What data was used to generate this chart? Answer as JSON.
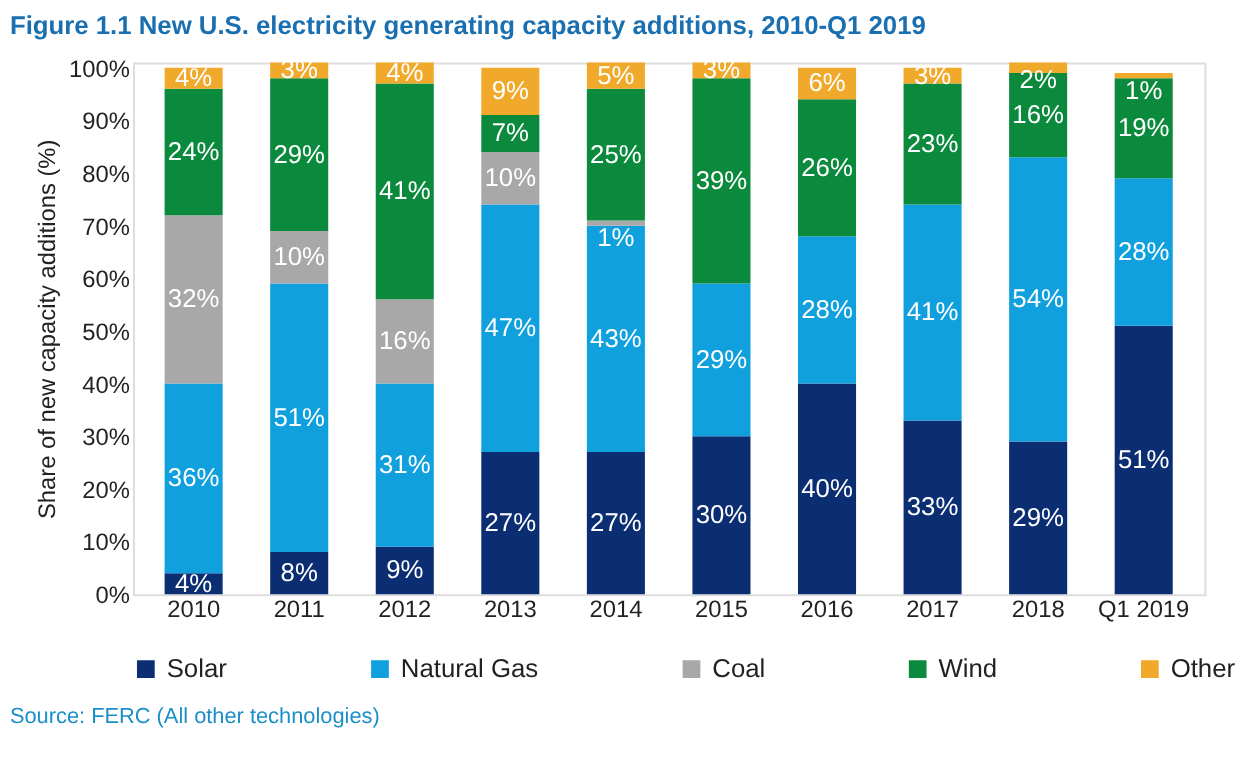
{
  "chart_data": {
    "type": "bar",
    "stacked": true,
    "title": "Figure 1.1 New U.S. electricity generating capacity additions, 2010-Q1 2019",
    "ylabel": "Share of new capacity additions (%)",
    "categories": [
      "2010",
      "2011",
      "2012",
      "2013",
      "2014",
      "2015",
      "2016",
      "2017",
      "2018",
      "Q1 2019"
    ],
    "series": [
      {
        "name": "Solar",
        "color": "#0b2d72",
        "values": [
          4,
          8,
          9,
          27,
          27,
          30,
          40,
          33,
          29,
          51
        ],
        "value_labels": [
          "4%",
          "8%",
          "9%",
          "27%",
          "27%",
          "30%",
          "40%",
          "33%",
          "29%",
          "51%"
        ]
      },
      {
        "name": "Natural Gas",
        "color": "#10a0dd",
        "values": [
          36,
          51,
          31,
          47,
          43,
          29,
          28,
          41,
          54,
          28
        ],
        "value_labels": [
          "36%",
          "51%",
          "31%",
          "47%",
          "43%",
          "29%",
          "28%",
          "41%",
          "54%",
          "28%"
        ]
      },
      {
        "name": "Coal",
        "color": "#a8a8a8",
        "values": [
          32,
          10,
          16,
          10,
          1,
          null,
          null,
          null,
          null,
          null
        ],
        "value_labels": [
          "32%",
          "10%",
          "16%",
          "10%",
          "1%",
          null,
          null,
          null,
          null,
          null
        ]
      },
      {
        "name": "Wind",
        "color": "#0b8a3e",
        "values": [
          24,
          29,
          41,
          7,
          25,
          39,
          26,
          23,
          16,
          19
        ],
        "value_labels": [
          "24%",
          "29%",
          "41%",
          "7%",
          "25%",
          "39%",
          "26%",
          "23%",
          "16%",
          "19%"
        ]
      },
      {
        "name": "Other",
        "color": "#f0a92a",
        "values": [
          4,
          3,
          4,
          9,
          5,
          3,
          6,
          3,
          2,
          1
        ],
        "value_labels": [
          "4%",
          "3%",
          "4%",
          "9%",
          "5%",
          "3%",
          "6%",
          "3%",
          "2%",
          "1%"
        ]
      }
    ],
    "ylim": [
      0,
      101
    ],
    "yticks": [
      {
        "value": 0,
        "label": "0%"
      },
      {
        "value": 10,
        "label": "10%"
      },
      {
        "value": 20,
        "label": "20%"
      },
      {
        "value": 30,
        "label": "30%"
      },
      {
        "value": 40,
        "label": "40%"
      },
      {
        "value": 50,
        "label": "50%"
      },
      {
        "value": 60,
        "label": "60%"
      },
      {
        "value": 70,
        "label": "70%"
      },
      {
        "value": 80,
        "label": "80%"
      },
      {
        "value": 90,
        "label": "90%"
      },
      {
        "value": 100,
        "label": "100%"
      }
    ],
    "grid": false,
    "legend": "bottom",
    "annotations": [
      "Source: FERC (All other technologies)"
    ]
  }
}
